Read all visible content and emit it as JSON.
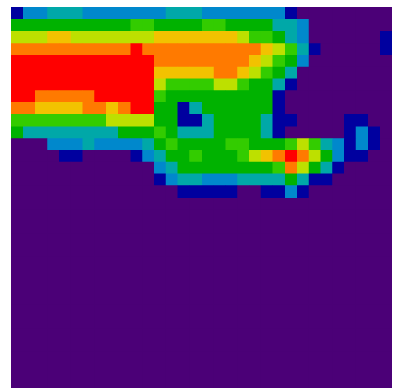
{
  "chart_data": {
    "type": "heatmap",
    "rows": 32,
    "cols": 32,
    "colormap": "nipy_spectral",
    "background_color": "#4b0077",
    "color_stops": [
      "#4b0077",
      "#00009f",
      "#0088cc",
      "#00a8a8",
      "#00b200",
      "#33cc00",
      "#bde000",
      "#f2c200",
      "#ff7a00",
      "#ff0000"
    ],
    "values": [
      [
        1,
        2,
        2,
        3,
        3,
        3,
        2,
        2,
        2,
        2,
        2,
        2,
        2,
        3,
        3,
        3,
        2,
        2,
        2,
        2,
        2,
        2,
        2,
        1,
        0,
        0,
        0,
        0,
        0,
        0,
        0,
        0
      ],
      [
        4,
        4,
        4,
        4,
        4,
        4,
        4,
        4,
        4,
        4,
        5,
        5,
        4,
        4,
        4,
        4,
        5,
        5,
        4,
        4,
        4,
        4,
        3,
        3,
        2,
        0,
        0,
        0,
        0,
        0,
        0,
        0
      ],
      [
        6,
        6,
        6,
        7,
        7,
        6,
        6,
        6,
        6,
        6,
        6,
        6,
        7,
        7,
        7,
        7,
        7,
        7,
        7,
        6,
        5,
        5,
        4,
        3,
        2,
        0,
        0,
        0,
        0,
        0,
        0,
        1
      ],
      [
        8,
        8,
        8,
        8,
        8,
        8,
        8,
        8,
        8,
        8,
        9,
        8,
        8,
        8,
        8,
        8,
        8,
        8,
        8,
        8,
        8,
        7,
        6,
        5,
        3,
        1,
        0,
        0,
        0,
        0,
        0,
        1
      ],
      [
        9,
        9,
        9,
        9,
        9,
        9,
        9,
        9,
        9,
        9,
        9,
        9,
        8,
        8,
        8,
        8,
        8,
        8,
        8,
        8,
        7,
        6,
        5,
        4,
        2,
        0,
        0,
        0,
        0,
        0,
        0,
        0
      ],
      [
        9,
        9,
        9,
        9,
        9,
        9,
        9,
        9,
        9,
        9,
        9,
        9,
        7,
        7,
        7,
        7,
        7,
        8,
        8,
        7,
        6,
        5,
        4,
        3,
        0,
        0,
        0,
        0,
        0,
        0,
        0,
        0
      ],
      [
        9,
        9,
        9,
        9,
        9,
        9,
        9,
        9,
        9,
        9,
        9,
        9,
        6,
        5,
        5,
        5,
        5,
        6,
        6,
        5,
        4,
        4,
        3,
        1,
        0,
        0,
        0,
        0,
        0,
        0,
        0,
        0
      ],
      [
        9,
        9,
        8,
        8,
        8,
        8,
        8,
        9,
        9,
        9,
        9,
        9,
        5,
        4,
        4,
        4,
        4,
        4,
        4,
        4,
        4,
        4,
        1,
        0,
        0,
        0,
        0,
        0,
        0,
        0,
        0,
        0
      ],
      [
        8,
        8,
        7,
        7,
        7,
        7,
        8,
        8,
        7,
        8,
        9,
        9,
        4,
        4,
        1,
        3,
        4,
        4,
        4,
        4,
        4,
        4,
        1,
        0,
        0,
        0,
        0,
        0,
        0,
        0,
        0,
        0
      ],
      [
        5,
        5,
        5,
        5,
        5,
        5,
        5,
        5,
        6,
        6,
        6,
        6,
        4,
        4,
        1,
        1,
        3,
        4,
        4,
        4,
        4,
        3,
        1,
        1,
        0,
        0,
        0,
        0,
        1,
        1,
        0,
        0
      ],
      [
        4,
        3,
        3,
        3,
        3,
        3,
        3,
        3,
        3,
        4,
        4,
        4,
        5,
        4,
        3,
        3,
        3,
        4,
        4,
        4,
        4,
        3,
        1,
        0,
        0,
        0,
        0,
        0,
        1,
        2,
        1,
        0
      ],
      [
        0,
        0,
        0,
        2,
        2,
        2,
        3,
        2,
        2,
        2,
        2,
        3,
        4,
        5,
        4,
        4,
        4,
        4,
        5,
        5,
        4,
        4,
        4,
        5,
        6,
        5,
        3,
        2,
        1,
        2,
        1,
        0
      ],
      [
        0,
        0,
        0,
        0,
        1,
        1,
        0,
        0,
        0,
        0,
        1,
        2,
        3,
        4,
        4,
        5,
        4,
        4,
        4,
        5,
        6,
        7,
        8,
        9,
        8,
        6,
        4,
        2,
        1,
        1,
        0,
        0
      ],
      [
        0,
        0,
        0,
        0,
        0,
        0,
        0,
        0,
        0,
        0,
        0,
        0,
        2,
        3,
        4,
        4,
        4,
        4,
        4,
        4,
        4,
        4,
        5,
        8,
        6,
        4,
        3,
        1,
        0,
        0,
        0,
        0
      ],
      [
        0,
        0,
        0,
        0,
        0,
        0,
        0,
        0,
        0,
        0,
        0,
        0,
        1,
        2,
        3,
        3,
        2,
        2,
        2,
        3,
        3,
        3,
        3,
        4,
        3,
        1,
        1,
        0,
        0,
        0,
        0,
        0
      ],
      [
        0,
        0,
        0,
        0,
        0,
        0,
        0,
        0,
        0,
        0,
        0,
        0,
        0,
        0,
        1,
        1,
        1,
        1,
        1,
        0,
        0,
        1,
        1,
        2,
        1,
        0,
        0,
        0,
        0,
        0,
        0,
        0
      ],
      [
        0,
        0,
        0,
        0,
        0,
        0,
        0,
        0,
        0,
        0,
        0,
        0,
        0,
        0,
        0,
        0,
        0,
        0,
        0,
        0,
        0,
        0,
        0,
        0,
        0,
        0,
        0,
        0,
        0,
        0,
        0,
        0
      ],
      [
        0,
        0,
        0,
        0,
        0,
        0,
        0,
        0,
        0,
        0,
        0,
        0,
        0,
        0,
        0,
        0,
        0,
        0,
        0,
        0,
        0,
        0,
        0,
        0,
        0,
        0,
        0,
        0,
        0,
        0,
        0,
        0
      ],
      [
        0,
        0,
        0,
        0,
        0,
        0,
        0,
        0,
        0,
        0,
        0,
        0,
        0,
        0,
        0,
        0,
        0,
        0,
        0,
        0,
        0,
        0,
        0,
        0,
        0,
        0,
        0,
        0,
        0,
        0,
        0,
        0
      ],
      [
        0,
        0,
        0,
        0,
        0,
        0,
        0,
        0,
        0,
        0,
        0,
        0,
        0,
        0,
        0,
        0,
        0,
        0,
        0,
        0,
        0,
        0,
        0,
        0,
        0,
        0,
        0,
        0,
        0,
        0,
        0,
        0
      ],
      [
        0,
        0,
        0,
        0,
        0,
        0,
        0,
        0,
        0,
        0,
        0,
        0,
        0,
        0,
        0,
        0,
        0,
        0,
        0,
        0,
        0,
        0,
        0,
        0,
        0,
        0,
        0,
        0,
        0,
        0,
        0,
        0
      ],
      [
        0,
        0,
        0,
        0,
        0,
        0,
        0,
        0,
        0,
        0,
        0,
        0,
        0,
        0,
        0,
        0,
        0,
        0,
        0,
        0,
        0,
        0,
        0,
        0,
        0,
        0,
        0,
        0,
        0,
        0,
        0,
        0
      ],
      [
        0,
        0,
        0,
        0,
        0,
        0,
        0,
        0,
        0,
        0,
        0,
        0,
        0,
        0,
        0,
        0,
        0,
        0,
        0,
        0,
        0,
        0,
        0,
        0,
        0,
        0,
        0,
        0,
        0,
        0,
        0,
        0
      ],
      [
        0,
        0,
        0,
        0,
        0,
        0,
        0,
        0,
        0,
        0,
        0,
        0,
        0,
        0,
        0,
        0,
        0,
        0,
        0,
        0,
        0,
        0,
        0,
        0,
        0,
        0,
        0,
        0,
        0,
        0,
        0,
        0
      ],
      [
        0,
        0,
        0,
        0,
        0,
        0,
        0,
        0,
        0,
        0,
        0,
        0,
        0,
        0,
        0,
        0,
        0,
        0,
        0,
        0,
        0,
        0,
        0,
        0,
        0,
        0,
        0,
        0,
        0,
        0,
        0,
        0
      ],
      [
        0,
        0,
        0,
        0,
        0,
        0,
        0,
        0,
        0,
        0,
        0,
        0,
        0,
        0,
        0,
        0,
        0,
        0,
        0,
        0,
        0,
        0,
        0,
        0,
        0,
        0,
        0,
        0,
        0,
        0,
        0,
        0
      ],
      [
        0,
        0,
        0,
        0,
        0,
        0,
        0,
        0,
        0,
        0,
        0,
        0,
        0,
        0,
        0,
        0,
        0,
        0,
        0,
        0,
        0,
        0,
        0,
        0,
        0,
        0,
        0,
        0,
        0,
        0,
        0,
        0
      ],
      [
        0,
        0,
        0,
        0,
        0,
        0,
        0,
        0,
        0,
        0,
        0,
        0,
        0,
        0,
        0,
        0,
        0,
        0,
        0,
        0,
        0,
        0,
        0,
        0,
        0,
        0,
        0,
        0,
        0,
        0,
        0,
        0
      ],
      [
        0,
        0,
        0,
        0,
        0,
        0,
        0,
        0,
        0,
        0,
        0,
        0,
        0,
        0,
        0,
        0,
        0,
        0,
        0,
        0,
        0,
        0,
        0,
        0,
        0,
        0,
        0,
        0,
        0,
        0,
        0,
        0
      ],
      [
        0,
        0,
        0,
        0,
        0,
        0,
        0,
        0,
        0,
        0,
        0,
        0,
        0,
        0,
        0,
        0,
        0,
        0,
        0,
        0,
        0,
        0,
        0,
        0,
        0,
        0,
        0,
        0,
        0,
        0,
        0,
        0
      ],
      [
        0,
        0,
        0,
        0,
        0,
        0,
        0,
        0,
        0,
        0,
        0,
        0,
        0,
        0,
        0,
        0,
        0,
        0,
        0,
        0,
        0,
        0,
        0,
        0,
        0,
        0,
        0,
        0,
        0,
        0,
        0,
        0
      ],
      [
        0,
        0,
        0,
        0,
        0,
        0,
        0,
        0,
        0,
        0,
        0,
        0,
        0,
        0,
        0,
        0,
        0,
        0,
        0,
        0,
        0,
        0,
        0,
        0,
        0,
        0,
        0,
        0,
        0,
        0,
        0,
        0
      ]
    ],
    "title": "",
    "xlabel": "",
    "ylabel": "",
    "grid": false,
    "axes_visible": false,
    "legend": "none"
  }
}
